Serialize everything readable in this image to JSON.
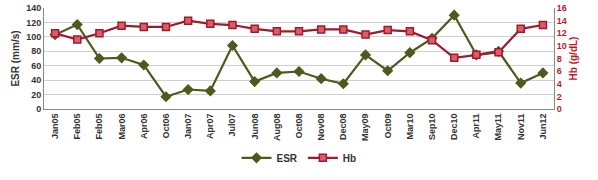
{
  "chart_data": {
    "type": "line",
    "categories": [
      "Jan05",
      "Feb05",
      "Feb05",
      "Mar06",
      "Apr06",
      "Oct06",
      "Jan07",
      "Apr07",
      "Jul07",
      "Jun08",
      "Aug08",
      "Oct08",
      "Nov08",
      "Dec08",
      "May09",
      "Oct09",
      "Mar10",
      "Sep10",
      "Dec10",
      "Apr11",
      "May11",
      "Nov11",
      "Jun12"
    ],
    "y_label": "ESR (mm/s)",
    "y2_label": "Hb (g/dL)",
    "ylim": [
      0,
      140
    ],
    "yticks": [
      0,
      20,
      40,
      60,
      80,
      100,
      120,
      140
    ],
    "y2lim": [
      0,
      16
    ],
    "y2ticks": [
      0,
      2,
      4,
      6,
      8,
      10,
      12,
      14,
      16
    ],
    "grid": true,
    "legend": "bottom",
    "series": [
      {
        "name": "ESR",
        "color": "#4d5a1e",
        "marker": "diamond",
        "line_style": "solid",
        "values": [
          103,
          117,
          70,
          71,
          61,
          17,
          27,
          25,
          88,
          38,
          50,
          52,
          42,
          35,
          75,
          53,
          78,
          98,
          130,
          75,
          80,
          36,
          50
        ]
      },
      {
        "name": "Hb",
        "color": "#9b1c2c",
        "marker": "square",
        "line_style": "solid",
        "axis": "y2",
        "values": [
          12,
          11,
          12,
          13.2,
          13,
          13,
          14,
          13.5,
          13.3,
          12.7,
          12.3,
          12.3,
          12.6,
          12.6,
          11.8,
          12.5,
          12.3,
          10.9,
          8.1,
          8.6,
          9,
          12.7,
          13.3
        ]
      }
    ]
  }
}
